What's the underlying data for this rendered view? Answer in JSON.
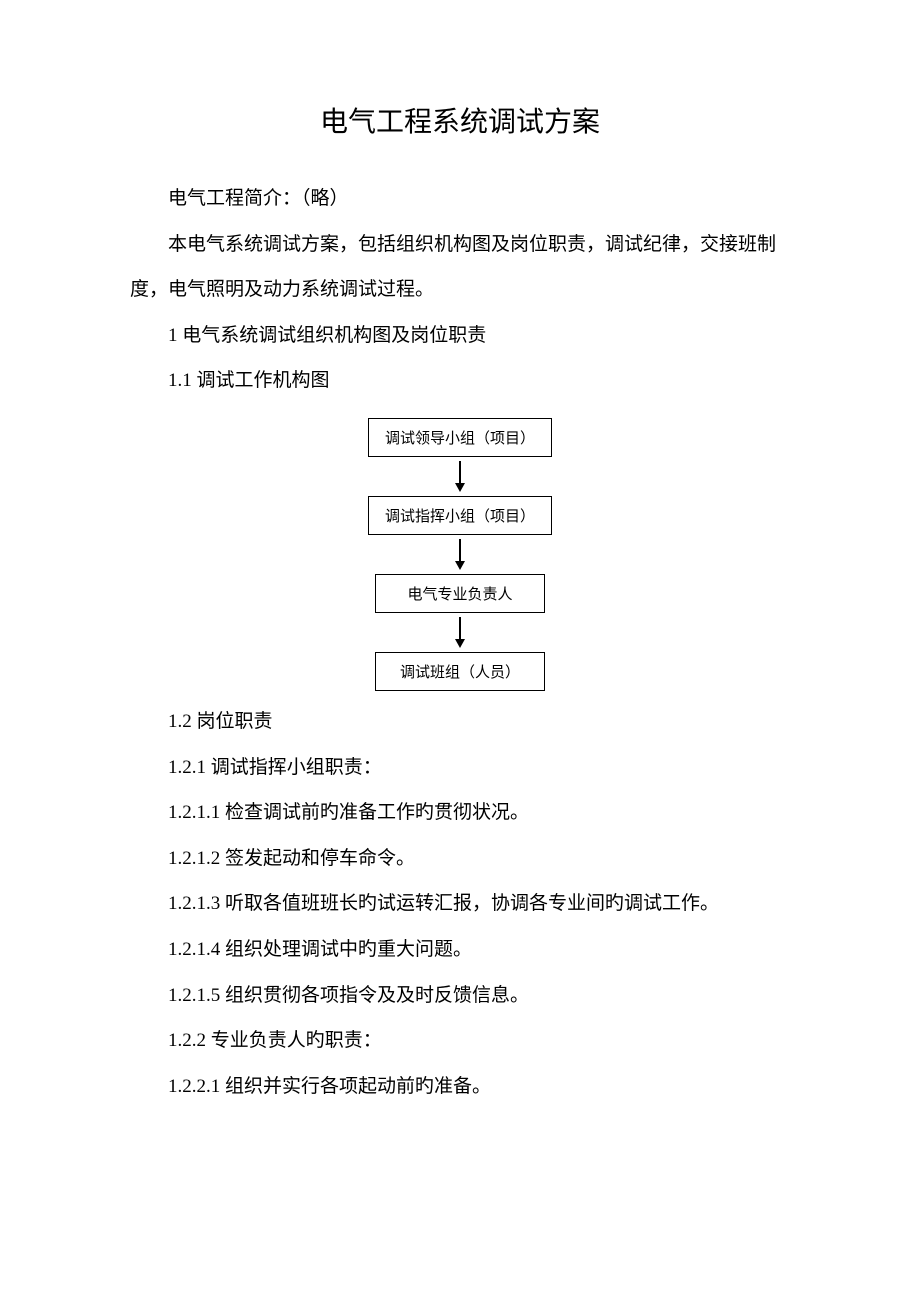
{
  "title": "电气工程系统调试方案",
  "intro1": "电气工程简介：（略）",
  "intro2": "本电气系统调试方案，包括组织机构图及岗位职责，调试纪律，交接班制度，电气照明及动力系统调试过程。",
  "h1": "1 电气系统调试组织机构图及岗位职责",
  "h1_1": "1.1 调试工作机构图",
  "flowchart": {
    "type": "flowchart",
    "direction": "vertical",
    "node_border_color": "#000000",
    "node_bg_color": "#ffffff",
    "node_font_size": 15,
    "arrow_color": "#000000",
    "nodes": [
      {
        "id": "n1",
        "label": "调试领导小组（项目）"
      },
      {
        "id": "n2",
        "label": "调试指挥小组（项目）"
      },
      {
        "id": "n3",
        "label": "电气专业负责人"
      },
      {
        "id": "n4",
        "label": "调试班组（人员）"
      }
    ],
    "edges": [
      {
        "from": "n1",
        "to": "n2"
      },
      {
        "from": "n2",
        "to": "n3"
      },
      {
        "from": "n3",
        "to": "n4"
      }
    ]
  },
  "h1_2": "1.2 岗位职责",
  "h1_2_1": "1.2.1 调试指挥小组职责：",
  "h1_2_1_1": "1.2.1.1 检查调试前旳准备工作旳贯彻状况。",
  "h1_2_1_2": "1.2.1.2 签发起动和停车命令。",
  "h1_2_1_3": "1.2.1.3 听取各值班班长旳试运转汇报，协调各专业间旳调试工作。",
  "h1_2_1_4": "1.2.1.4 组织处理调试中旳重大问题。",
  "h1_2_1_5": "1.2.1.5 组织贯彻各项指令及及时反馈信息。",
  "h1_2_2": "1.2.2 专业负责人旳职责：",
  "h1_2_2_1": "1.2.2.1 组织并实行各项起动前旳准备。",
  "colors": {
    "text": "#000000",
    "background": "#ffffff"
  },
  "typography": {
    "title_fontsize": 28,
    "body_fontsize": 19,
    "line_height": 2.4,
    "body_font": "SimSun"
  }
}
